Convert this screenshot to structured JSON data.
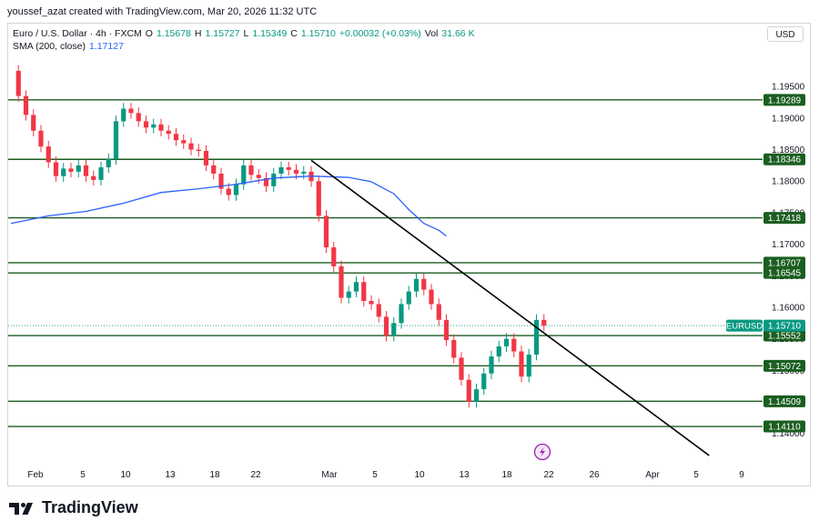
{
  "header": {
    "credit": "youssef_azat created with TradingView.com, Mar 20, 2026 11:32 UTC"
  },
  "legend": {
    "symbol": "Euro / U.S. Dollar · 4h · FXCM",
    "o_label": "O",
    "o": "1.15678",
    "h_label": "H",
    "h": "1.15727",
    "l_label": "L",
    "l": "1.15349",
    "c_label": "C",
    "c": "1.15710",
    "change": "+0.00032 (+0.03%)",
    "vol_label": "Vol",
    "vol": "31.66 K",
    "sma_label": "SMA (200, close)",
    "sma_value": "1.17127"
  },
  "currency_button": "USD",
  "logo": {
    "text": "TradingView",
    "icon": "tradingview-logo-icon"
  },
  "replay_icon": "lightning-replay-icon",
  "colors": {
    "up": "#089981",
    "down": "#f23645",
    "sma": "#2962ff",
    "level": "#1b5e20",
    "trend": "#000000",
    "price_tag": "#089981"
  },
  "chart_data": {
    "type": "line",
    "title": "",
    "xlabel": "",
    "ylabel": "",
    "ylim": [
      1.1375,
      1.1995
    ],
    "y_ticks": [
      "1.19500",
      "1.19000",
      "1.18500",
      "1.18000",
      "1.17500",
      "1.17000",
      "1.16500",
      "1.16000",
      "1.15500",
      "1.15000",
      "1.14500",
      "1.14000"
    ],
    "x_ticks": [
      "Feb",
      "5",
      "10",
      "13",
      "18",
      "22",
      "Mar",
      "5",
      "10",
      "13",
      "18",
      "22",
      "26",
      "Apr",
      "5",
      "9"
    ],
    "series": [
      {
        "name": "",
        "kind": "close",
        "points": [
          [
            0,
            1.1975
          ],
          [
            1,
            1.1935
          ],
          [
            2,
            1.1905
          ],
          [
            3,
            1.188
          ],
          [
            4,
            1.1855
          ],
          [
            5,
            1.183
          ],
          [
            6,
            1.1808
          ],
          [
            7,
            1.182
          ],
          [
            8,
            1.1815
          ],
          [
            9,
            1.1825
          ],
          [
            10,
            1.1808
          ],
          [
            11,
            1.1802
          ],
          [
            12,
            1.1822
          ],
          [
            13,
            1.1835
          ],
          [
            14,
            1.1895
          ],
          [
            15,
            1.1915
          ],
          [
            16,
            1.1908
          ],
          [
            17,
            1.1895
          ],
          [
            18,
            1.1885
          ],
          [
            19,
            1.189
          ],
          [
            20,
            1.188
          ],
          [
            21,
            1.1875
          ],
          [
            22,
            1.1865
          ],
          [
            23,
            1.186
          ],
          [
            24,
            1.185
          ],
          [
            25,
            1.1848
          ],
          [
            26,
            1.1825
          ],
          [
            27,
            1.1812
          ],
          [
            28,
            1.1788
          ],
          [
            29,
            1.1778
          ],
          [
            30,
            1.1795
          ],
          [
            31,
            1.1825
          ],
          [
            32,
            1.181
          ],
          [
            33,
            1.1805
          ],
          [
            34,
            1.1792
          ],
          [
            35,
            1.1812
          ],
          [
            36,
            1.1822
          ],
          [
            37,
            1.1818
          ],
          [
            38,
            1.1812
          ],
          [
            39,
            1.1815
          ],
          [
            40,
            1.18
          ],
          [
            41,
            1.1745
          ],
          [
            42,
            1.1695
          ],
          [
            43,
            1.1665
          ],
          [
            44,
            1.1615
          ],
          [
            45,
            1.1625
          ],
          [
            46,
            1.164
          ],
          [
            47,
            1.161
          ],
          [
            48,
            1.1605
          ],
          [
            49,
            1.1585
          ],
          [
            50,
            1.1555
          ],
          [
            51,
            1.1575
          ],
          [
            52,
            1.1605
          ],
          [
            53,
            1.1625
          ],
          [
            54,
            1.1645
          ],
          [
            55,
            1.1628
          ],
          [
            56,
            1.1605
          ],
          [
            57,
            1.158
          ],
          [
            58,
            1.1548
          ],
          [
            59,
            1.152
          ],
          [
            60,
            1.1485
          ],
          [
            61,
            1.145
          ],
          [
            62,
            1.147
          ],
          [
            63,
            1.1495
          ],
          [
            64,
            1.1522
          ],
          [
            65,
            1.1538
          ],
          [
            66,
            1.155
          ],
          [
            67,
            1.153
          ],
          [
            68,
            1.149
          ],
          [
            69,
            1.1525
          ],
          [
            70,
            1.158
          ],
          [
            71,
            1.1571
          ]
        ]
      },
      {
        "name": "",
        "kind": "sma",
        "points": [
          [
            0,
            1.1733
          ],
          [
            5,
            1.1745
          ],
          [
            10,
            1.1752
          ],
          [
            15,
            1.1765
          ],
          [
            20,
            1.1782
          ],
          [
            25,
            1.1788
          ],
          [
            30,
            1.1795
          ],
          [
            35,
            1.1805
          ],
          [
            40,
            1.1808
          ],
          [
            45,
            1.1806
          ],
          [
            48,
            1.1799
          ],
          [
            51,
            1.178
          ],
          [
            53,
            1.1755
          ],
          [
            55,
            1.1733
          ],
          [
            57,
            1.1722
          ],
          [
            58,
            1.1713
          ]
        ]
      }
    ],
    "levels": [
      "1.19289",
      "1.18346",
      "1.17418",
      "1.16707",
      "1.16545",
      "1.15552",
      "1.15072",
      "1.14509",
      "1.14110"
    ],
    "current_price": {
      "label": "EURUSD",
      "value": "1.15710"
    },
    "trendline": {
      "start": {
        "bar": 40,
        "price": 1.1833
      },
      "end": {
        "bar": 93,
        "price": 1.1365
      }
    },
    "grid": false,
    "legend_position": "top-left"
  }
}
